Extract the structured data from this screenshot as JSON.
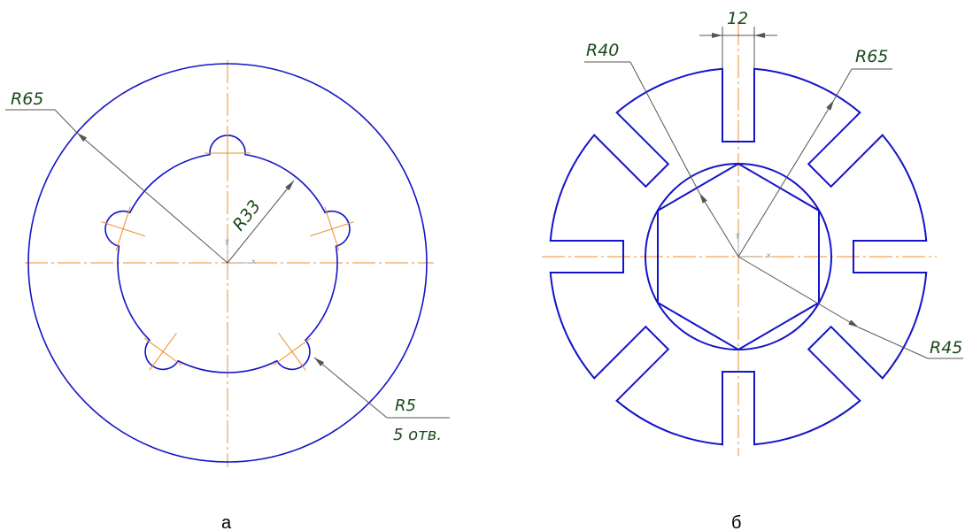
{
  "colors": {
    "outline": "#1414c8",
    "axis": "#f08c28",
    "dimension": "#555555",
    "dim_text": "#1b4a1b"
  },
  "figure_a": {
    "caption": "а",
    "outer_radius_label": "R65",
    "inner_radius_label": "R33",
    "hole_radius_label": "R5",
    "hole_count_label": "5 отв.",
    "axis_y": "y",
    "axis_x": "x"
  },
  "figure_b": {
    "caption": "б",
    "slot_width_label": "12",
    "radius_40_label": "R40",
    "radius_65_label": "R65",
    "radius_45_label": "R45",
    "axis_y": "y",
    "axis_x": "x"
  }
}
